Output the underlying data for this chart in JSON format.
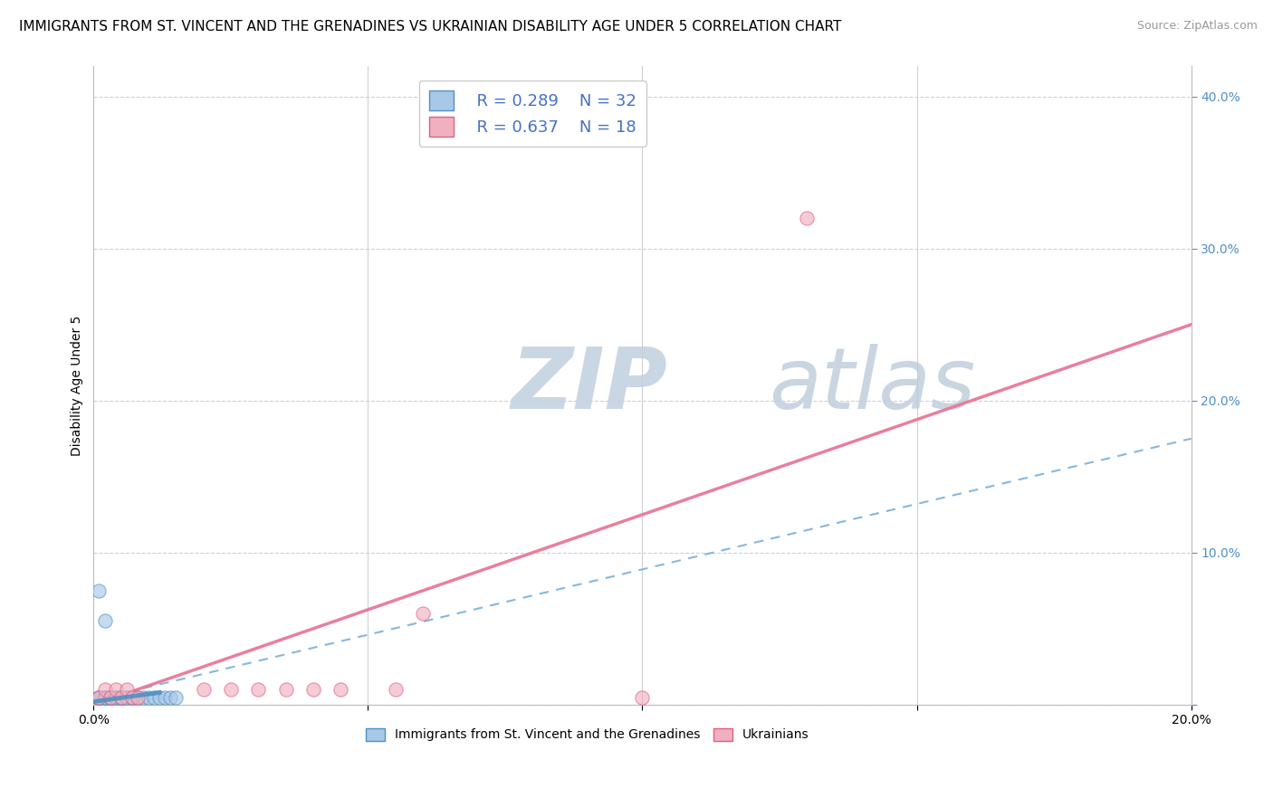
{
  "title": "IMMIGRANTS FROM ST. VINCENT AND THE GRENADINES VS UKRAINIAN DISABILITY AGE UNDER 5 CORRELATION CHART",
  "source": "Source: ZipAtlas.com",
  "ylabel": "Disability Age Under 5",
  "xlim": [
    0.0,
    0.2
  ],
  "ylim": [
    0.0,
    0.42
  ],
  "blue_scatter_x": [
    0.001,
    0.001,
    0.001,
    0.001,
    0.002,
    0.002,
    0.002,
    0.002,
    0.003,
    0.003,
    0.003,
    0.003,
    0.004,
    0.004,
    0.004,
    0.005,
    0.005,
    0.005,
    0.006,
    0.006,
    0.007,
    0.007,
    0.008,
    0.009,
    0.01,
    0.011,
    0.012,
    0.013,
    0.014,
    0.015,
    0.001,
    0.002
  ],
  "blue_scatter_y": [
    0.005,
    0.005,
    0.005,
    0.005,
    0.005,
    0.005,
    0.005,
    0.005,
    0.005,
    0.005,
    0.005,
    0.005,
    0.005,
    0.005,
    0.005,
    0.005,
    0.005,
    0.005,
    0.005,
    0.005,
    0.005,
    0.005,
    0.005,
    0.005,
    0.005,
    0.005,
    0.005,
    0.005,
    0.005,
    0.005,
    0.075,
    0.055
  ],
  "pink_scatter_x": [
    0.001,
    0.002,
    0.003,
    0.004,
    0.005,
    0.006,
    0.007,
    0.008,
    0.02,
    0.025,
    0.03,
    0.035,
    0.04,
    0.045,
    0.055,
    0.06,
    0.1,
    0.13
  ],
  "pink_scatter_y": [
    0.005,
    0.01,
    0.005,
    0.01,
    0.005,
    0.01,
    0.005,
    0.005,
    0.01,
    0.01,
    0.01,
    0.01,
    0.01,
    0.01,
    0.01,
    0.06,
    0.005,
    0.32
  ],
  "blue_line_x": [
    0.0,
    0.2
  ],
  "blue_line_y": [
    0.003,
    0.175
  ],
  "pink_line_x": [
    0.0,
    0.2
  ],
  "pink_line_y": [
    0.0,
    0.25
  ],
  "blue_color": "#a8c8e8",
  "pink_color": "#f0b0c0",
  "blue_edge_color": "#5090c0",
  "pink_edge_color": "#e06080",
  "blue_line_color": "#7ab0d8",
  "pink_line_color": "#e87898",
  "grid_color": "#d0d0d0",
  "watermark_zip_color": "#c8d8e8",
  "watermark_atlas_color": "#c8d0d8",
  "tick_color_y": "#5090c8",
  "legend_R1": "R = 0.289",
  "legend_N1": "N = 32",
  "legend_R2": "R = 0.637",
  "legend_N2": "N = 18",
  "title_fontsize": 11,
  "axis_label_fontsize": 10,
  "tick_fontsize": 10,
  "legend_fontsize": 13
}
